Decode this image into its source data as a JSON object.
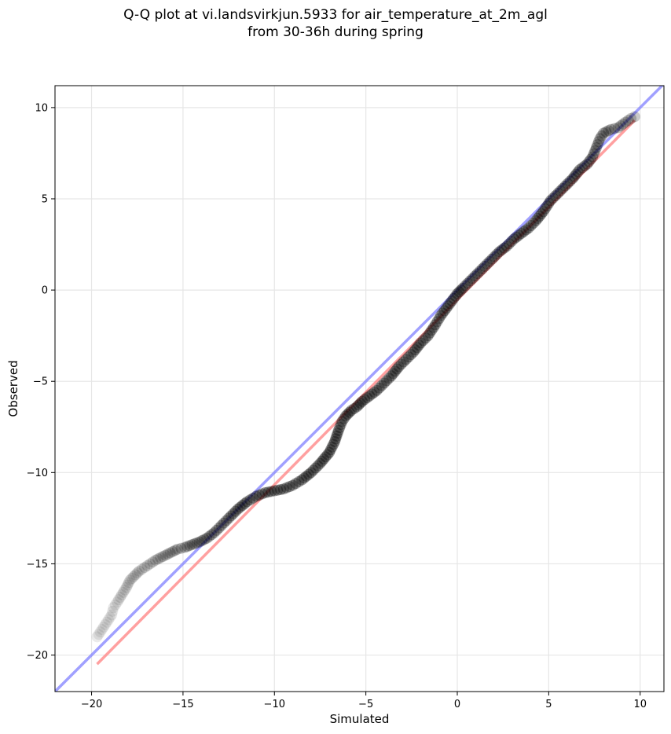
{
  "chart_data": {
    "type": "scatter",
    "title_line1": "Q-Q plot at vi.landsvirkjun.5933 for air_temperature_at_2m_agl",
    "title_line2": "from 30-36h during spring",
    "xlabel": "Simulated",
    "ylabel": "Observed",
    "xlim": [
      -22,
      11.3
    ],
    "ylim": [
      -22,
      11.2
    ],
    "xticks": [
      -20,
      -15,
      -10,
      -5,
      0,
      5,
      10
    ],
    "yticks": [
      -20,
      -15,
      -10,
      -5,
      0,
      5,
      10
    ],
    "xtick_labels": [
      "−20",
      "−15",
      "−10",
      "−5",
      "0",
      "5",
      "10"
    ],
    "ytick_labels": [
      "−20",
      "−15",
      "−10",
      "−5",
      "0",
      "5",
      "10"
    ],
    "grid": true,
    "series": [
      {
        "role": "quantiles",
        "color": "#000000",
        "points": [
          [
            -19.7,
            -19.0
          ],
          [
            -18.9,
            -17.8
          ],
          [
            -18.8,
            -17.4
          ],
          [
            -18.6,
            -17.1
          ],
          [
            -18.1,
            -16.3
          ],
          [
            -17.9,
            -15.9
          ],
          [
            -17.6,
            -15.6
          ],
          [
            -17.4,
            -15.4
          ],
          [
            -17.1,
            -15.2
          ],
          [
            -16.8,
            -15.0
          ],
          [
            -16.5,
            -14.8
          ],
          [
            -16.1,
            -14.6
          ],
          [
            -15.7,
            -14.4
          ],
          [
            -15.3,
            -14.2
          ],
          [
            -14.9,
            -14.1
          ],
          [
            -14.5,
            -13.95
          ],
          [
            -14.1,
            -13.8
          ],
          [
            -13.7,
            -13.6
          ],
          [
            -13.3,
            -13.3
          ],
          [
            -12.9,
            -12.9
          ],
          [
            -12.5,
            -12.5
          ],
          [
            -12.0,
            -12.0
          ],
          [
            -11.5,
            -11.6
          ],
          [
            -11.0,
            -11.3
          ],
          [
            -10.5,
            -11.1
          ],
          [
            -10.0,
            -11.0
          ],
          [
            -9.5,
            -10.9
          ],
          [
            -9.0,
            -10.7
          ],
          [
            -8.5,
            -10.4
          ],
          [
            -8.0,
            -10.0
          ],
          [
            -7.5,
            -9.5
          ],
          [
            -7.0,
            -8.9
          ],
          [
            -6.7,
            -8.3
          ],
          [
            -6.5,
            -7.7
          ],
          [
            -6.3,
            -7.2
          ],
          [
            -6.1,
            -6.9
          ],
          [
            -5.8,
            -6.6
          ],
          [
            -5.5,
            -6.4
          ],
          [
            -5.2,
            -6.1
          ],
          [
            -4.8,
            -5.8
          ],
          [
            -4.4,
            -5.5
          ],
          [
            -4.0,
            -5.1
          ],
          [
            -3.6,
            -4.7
          ],
          [
            -3.2,
            -4.2
          ],
          [
            -2.8,
            -3.8
          ],
          [
            -2.4,
            -3.4
          ],
          [
            -2.0,
            -2.9
          ],
          [
            -1.6,
            -2.5
          ],
          [
            -1.2,
            -1.9
          ],
          [
            -0.9,
            -1.4
          ],
          [
            -0.6,
            -1.0
          ],
          [
            -0.3,
            -0.6
          ],
          [
            0.0,
            -0.2
          ],
          [
            0.3,
            0.1
          ],
          [
            0.7,
            0.5
          ],
          [
            1.1,
            0.9
          ],
          [
            1.5,
            1.3
          ],
          [
            1.9,
            1.7
          ],
          [
            2.3,
            2.1
          ],
          [
            2.7,
            2.4
          ],
          [
            3.1,
            2.8
          ],
          [
            3.5,
            3.1
          ],
          [
            3.9,
            3.4
          ],
          [
            4.3,
            3.8
          ],
          [
            4.7,
            4.3
          ],
          [
            5.1,
            4.9
          ],
          [
            5.5,
            5.3
          ],
          [
            5.9,
            5.7
          ],
          [
            6.3,
            6.1
          ],
          [
            6.7,
            6.6
          ],
          [
            7.1,
            6.9
          ],
          [
            7.4,
            7.3
          ],
          [
            7.6,
            7.8
          ],
          [
            7.8,
            8.3
          ],
          [
            8.0,
            8.6
          ],
          [
            8.4,
            8.8
          ],
          [
            8.8,
            8.9
          ],
          [
            9.2,
            9.2
          ],
          [
            9.5,
            9.4
          ],
          [
            9.7,
            9.5
          ]
        ]
      }
    ],
    "reference_lines": [
      {
        "name": "identity",
        "color": "#8080ff",
        "x": [
          -22,
          11.3
        ],
        "y": [
          -22,
          11.3
        ]
      },
      {
        "name": "fit",
        "color": "#ff8080",
        "x": [
          -19.7,
          9.7
        ],
        "y": [
          -20.5,
          9.3
        ]
      }
    ]
  }
}
